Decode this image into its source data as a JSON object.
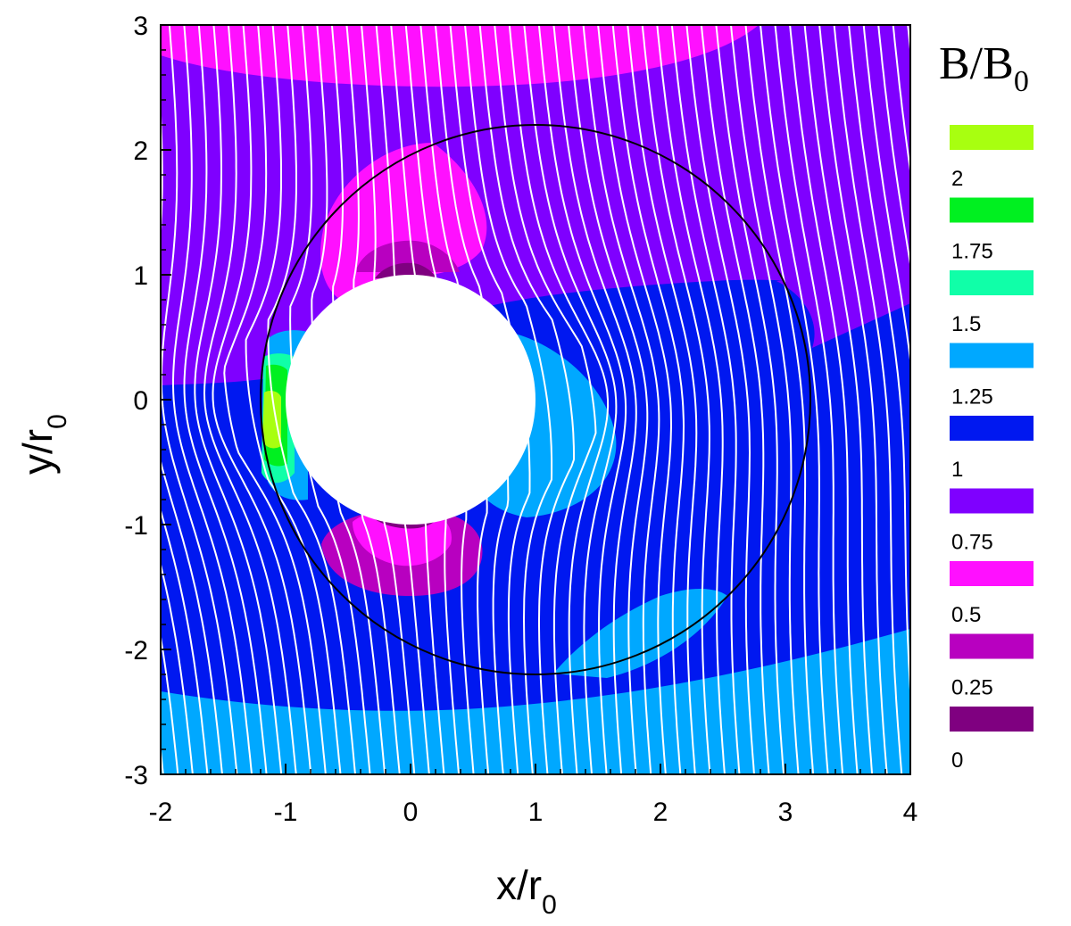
{
  "chart_data": {
    "type": "heatmap",
    "title": "",
    "xlabel": {
      "base": "x/r",
      "sub": "0"
    },
    "ylabel": {
      "base": "y/r",
      "sub": "0"
    },
    "xlim": [
      -2,
      4
    ],
    "ylim": [
      -3,
      3
    ],
    "x_ticks": [
      "-2",
      "-1",
      "0",
      "1",
      "2",
      "3",
      "4"
    ],
    "y_ticks": [
      "3",
      "2",
      "1",
      "0",
      "-1",
      "-2",
      "-3"
    ],
    "colorbar": {
      "title": {
        "base": "B/B",
        "sub": "0"
      },
      "levels": [
        {
          "label": "2",
          "color": "#a8ff10"
        },
        {
          "label": "1.75",
          "color": "#00f020"
        },
        {
          "label": "1.5",
          "color": "#10ffa8"
        },
        {
          "label": "1.25",
          "color": "#00a8ff"
        },
        {
          "label": "1",
          "color": "#0018f0"
        },
        {
          "label": "0.75",
          "color": "#7f00ff"
        },
        {
          "label": "0.5",
          "color": "#ff10ff"
        },
        {
          "label": "0.25",
          "color": "#b800c0"
        },
        {
          "label": "0",
          "color": "#7f0080"
        }
      ],
      "top_color": "#a8ff10"
    },
    "obstacle": {
      "center": [
        0,
        0
      ],
      "radius": 1
    },
    "reference_circle": {
      "center": [
        1,
        0
      ],
      "radius": 2.2
    },
    "field_lines": {
      "color": "#ffffff",
      "count": 62,
      "tilt": 0.09
    }
  }
}
